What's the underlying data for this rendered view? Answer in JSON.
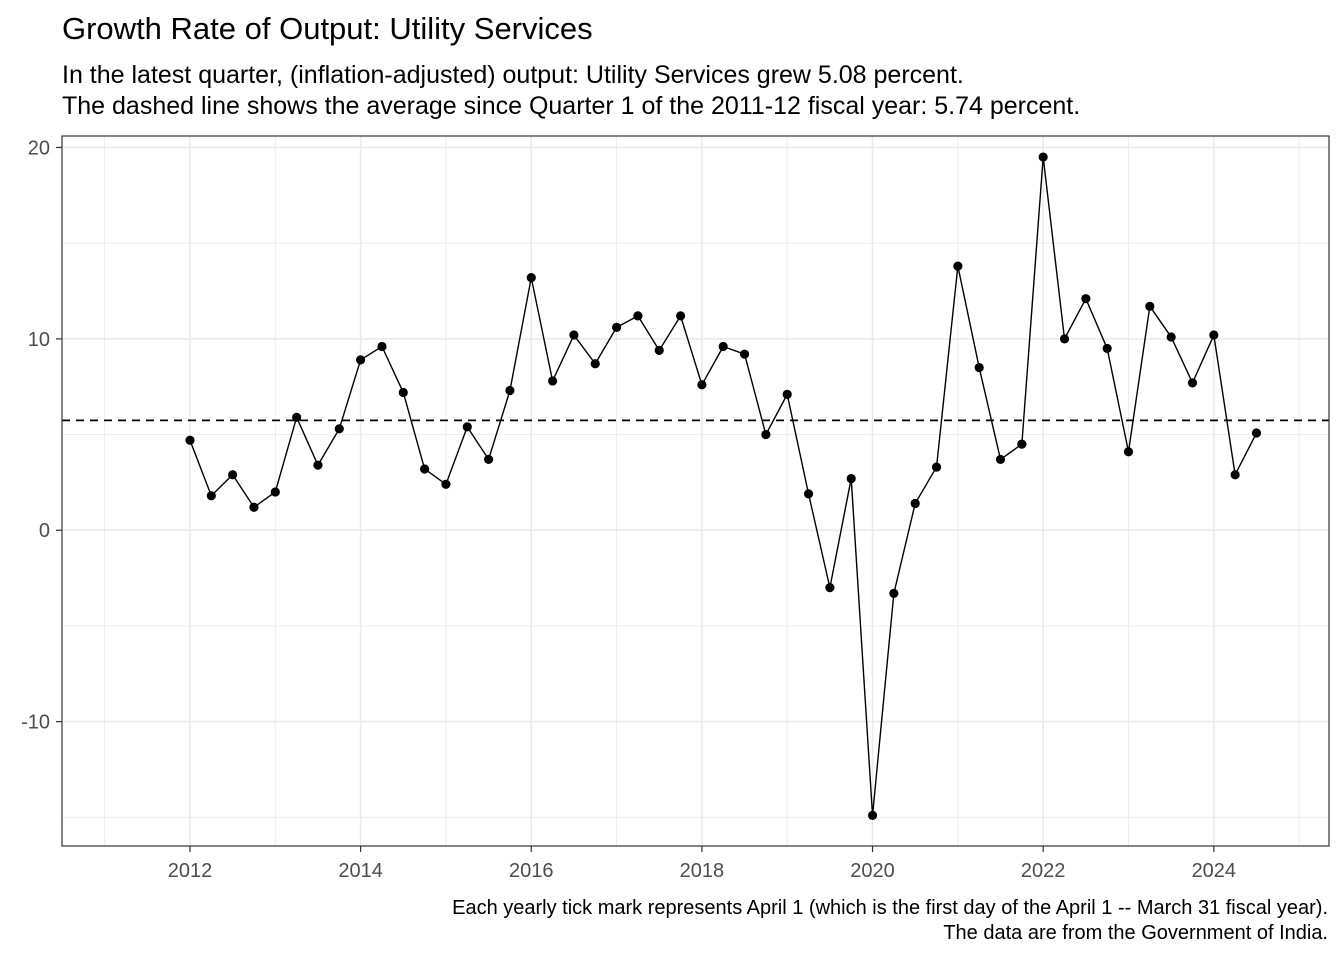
{
  "chart_data": {
    "type": "line",
    "title": "Growth Rate of Output: Utility Services",
    "subtitle_lines": [
      "In the latest quarter, (inflation-adjusted) output: Utility Services grew 5.08 percent.",
      "The dashed line shows the average since Quarter 1 of the 2011-12 fiscal year: 5.74 percent."
    ],
    "caption_lines": [
      "Each yearly tick mark represents April 1 (which is the first day of the April 1 -- March 31 fiscal year).",
      "The data are from the Government of India."
    ],
    "xlabel": "",
    "ylabel": "",
    "x_ticks": [
      2012,
      2014,
      2016,
      2018,
      2020,
      2022,
      2024
    ],
    "y_ticks": [
      -10,
      0,
      10,
      20
    ],
    "xlim": [
      2010.5,
      2025.35
    ],
    "ylim": [
      -16.5,
      20.6
    ],
    "grid": true,
    "legend": "none",
    "reference_line": {
      "style": "dashed",
      "value": 5.74
    },
    "x": [
      2012.0,
      2012.25,
      2012.5,
      2012.75,
      2013.0,
      2013.25,
      2013.5,
      2013.75,
      2014.0,
      2014.25,
      2014.5,
      2014.75,
      2015.0,
      2015.25,
      2015.5,
      2015.75,
      2016.0,
      2016.25,
      2016.5,
      2016.75,
      2017.0,
      2017.25,
      2017.5,
      2017.75,
      2018.0,
      2018.25,
      2018.5,
      2018.75,
      2019.0,
      2019.25,
      2019.5,
      2019.75,
      2020.0,
      2020.25,
      2020.5,
      2020.75,
      2021.0,
      2021.25,
      2021.5,
      2021.75,
      2022.0,
      2022.25,
      2022.5,
      2022.75,
      2023.0,
      2023.25,
      2023.5,
      2023.75,
      2024.0,
      2024.25,
      2024.5
    ],
    "series": [
      {
        "values": [
          4.7,
          1.8,
          2.9,
          1.2,
          2.0,
          5.9,
          3.4,
          5.3,
          8.9,
          9.6,
          7.2,
          3.2,
          2.4,
          5.4,
          3.7,
          7.3,
          13.2,
          7.8,
          10.2,
          8.7,
          10.6,
          11.2,
          9.4,
          11.2,
          7.6,
          9.6,
          9.2,
          5.0,
          7.1,
          1.9,
          -3.0,
          2.7,
          -14.9,
          -3.3,
          1.4,
          3.3,
          13.8,
          8.5,
          3.7,
          4.5,
          19.5,
          10.0,
          12.1,
          9.5,
          4.1,
          11.7,
          10.1,
          7.7,
          10.2,
          2.9,
          5.08
        ]
      }
    ],
    "colors": {
      "line": "#000000",
      "points": "#000000",
      "grid": "#ebebeb",
      "panel_border": "#333333",
      "tick_text": "#4d4d4d"
    }
  }
}
